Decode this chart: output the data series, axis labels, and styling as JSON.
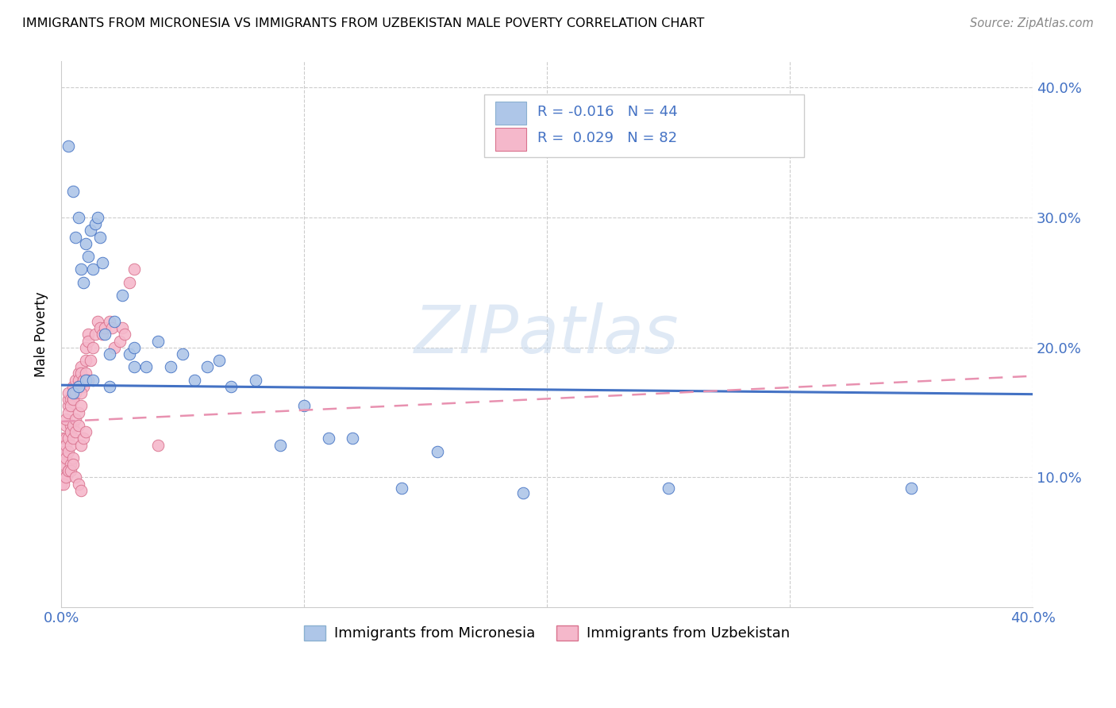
{
  "title": "IMMIGRANTS FROM MICRONESIA VS IMMIGRANTS FROM UZBEKISTAN MALE POVERTY CORRELATION CHART",
  "source": "Source: ZipAtlas.com",
  "ylabel": "Male Poverty",
  "legend1_label": "Immigrants from Micronesia",
  "legend2_label": "Immigrants from Uzbekistan",
  "r1": "-0.016",
  "n1": "44",
  "r2": "0.029",
  "n2": "82",
  "color_micronesia": "#aec6e8",
  "color_uzbekistan": "#f5b8cb",
  "line_micronesia": "#4472c4",
  "line_uzbekistan_dashed": "#e891b0",
  "watermark": "ZIPatlas",
  "mic_x": [
    0.003,
    0.005,
    0.006,
    0.007,
    0.008,
    0.009,
    0.01,
    0.011,
    0.012,
    0.013,
    0.014,
    0.015,
    0.016,
    0.017,
    0.018,
    0.02,
    0.022,
    0.025,
    0.028,
    0.03,
    0.035,
    0.04,
    0.045,
    0.05,
    0.055,
    0.06,
    0.065,
    0.07,
    0.08,
    0.09,
    0.1,
    0.11,
    0.12,
    0.14,
    0.155,
    0.19,
    0.25,
    0.35,
    0.005,
    0.007,
    0.01,
    0.013,
    0.02,
    0.03
  ],
  "mic_y": [
    0.355,
    0.32,
    0.285,
    0.3,
    0.26,
    0.25,
    0.28,
    0.27,
    0.29,
    0.26,
    0.295,
    0.3,
    0.285,
    0.265,
    0.21,
    0.195,
    0.22,
    0.24,
    0.195,
    0.2,
    0.185,
    0.205,
    0.185,
    0.195,
    0.175,
    0.185,
    0.19,
    0.17,
    0.175,
    0.125,
    0.155,
    0.13,
    0.13,
    0.092,
    0.12,
    0.088,
    0.092,
    0.092,
    0.165,
    0.17,
    0.175,
    0.175,
    0.17,
    0.185
  ],
  "uzb_x": [
    0.0,
    0.001,
    0.001,
    0.002,
    0.002,
    0.003,
    0.003,
    0.003,
    0.004,
    0.004,
    0.005,
    0.005,
    0.005,
    0.006,
    0.006,
    0.007,
    0.007,
    0.008,
    0.008,
    0.009,
    0.009,
    0.01,
    0.01,
    0.011,
    0.011,
    0.012,
    0.013,
    0.014,
    0.015,
    0.016,
    0.017,
    0.018,
    0.02,
    0.021,
    0.022,
    0.024,
    0.025,
    0.026,
    0.028,
    0.03,
    0.002,
    0.003,
    0.004,
    0.005,
    0.006,
    0.007,
    0.008,
    0.009,
    0.01,
    0.011,
    0.001,
    0.002,
    0.003,
    0.004,
    0.005,
    0.006,
    0.007,
    0.008,
    0.001,
    0.002,
    0.003,
    0.004,
    0.005,
    0.006,
    0.007,
    0.008,
    0.009,
    0.01,
    0.002,
    0.003,
    0.004,
    0.005,
    0.0,
    0.001,
    0.002,
    0.003,
    0.004,
    0.005,
    0.006,
    0.007,
    0.008,
    0.04
  ],
  "uzb_y": [
    0.1,
    0.13,
    0.115,
    0.14,
    0.13,
    0.155,
    0.16,
    0.165,
    0.14,
    0.16,
    0.17,
    0.165,
    0.16,
    0.175,
    0.165,
    0.18,
    0.175,
    0.185,
    0.18,
    0.175,
    0.17,
    0.2,
    0.19,
    0.21,
    0.205,
    0.19,
    0.2,
    0.21,
    0.22,
    0.215,
    0.21,
    0.215,
    0.22,
    0.215,
    0.2,
    0.205,
    0.215,
    0.21,
    0.25,
    0.26,
    0.145,
    0.15,
    0.155,
    0.16,
    0.165,
    0.17,
    0.165,
    0.175,
    0.18,
    0.175,
    0.12,
    0.125,
    0.13,
    0.135,
    0.14,
    0.145,
    0.15,
    0.155,
    0.11,
    0.115,
    0.12,
    0.125,
    0.13,
    0.135,
    0.14,
    0.125,
    0.13,
    0.135,
    0.1,
    0.105,
    0.11,
    0.115,
    0.095,
    0.095,
    0.1,
    0.105,
    0.105,
    0.11,
    0.1,
    0.095,
    0.09,
    0.125
  ],
  "mic_line_x": [
    0.0,
    0.4
  ],
  "mic_line_y": [
    0.171,
    0.164
  ],
  "uzb_line_x": [
    0.0,
    0.4
  ],
  "uzb_line_y": [
    0.143,
    0.178
  ],
  "xlim": [
    0.0,
    0.4
  ],
  "ylim": [
    0.0,
    0.42
  ],
  "x_tick_vals": [
    0.0,
    0.1,
    0.2,
    0.3,
    0.4
  ],
  "y_tick_vals": [
    0.1,
    0.2,
    0.3,
    0.4
  ],
  "background_color": "#ffffff"
}
